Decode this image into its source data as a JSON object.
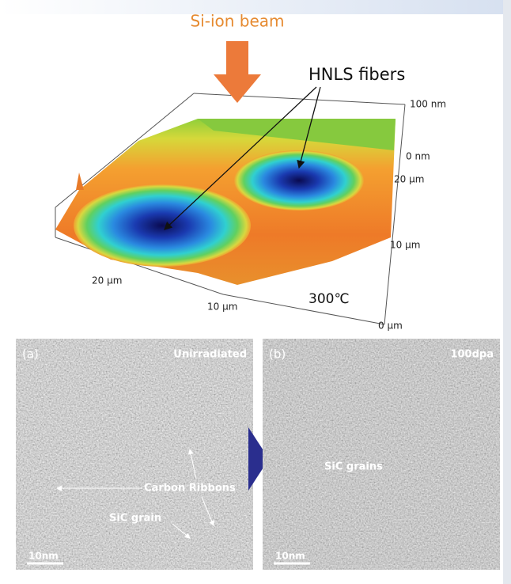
{
  "figure": {
    "beam_label": "Si-ion beam",
    "fiber_label": "HNLS fibers",
    "temperature": "300℃",
    "axis_labels": [
      "100 nm",
      "0 nm",
      "20 µm",
      "10 µm",
      "0 µm",
      "20 µm",
      "10 µm"
    ]
  },
  "panels": [
    {
      "label": "(a)",
      "condition": "Unirradiated",
      "annotations": [
        "Carbon Ribbons",
        "SiC grain"
      ],
      "scale_bar": "10nm"
    },
    {
      "label": "(b)",
      "condition": "100dpa",
      "annotations": [
        "SiC grains"
      ],
      "scale_bar": "10nm"
    }
  ]
}
